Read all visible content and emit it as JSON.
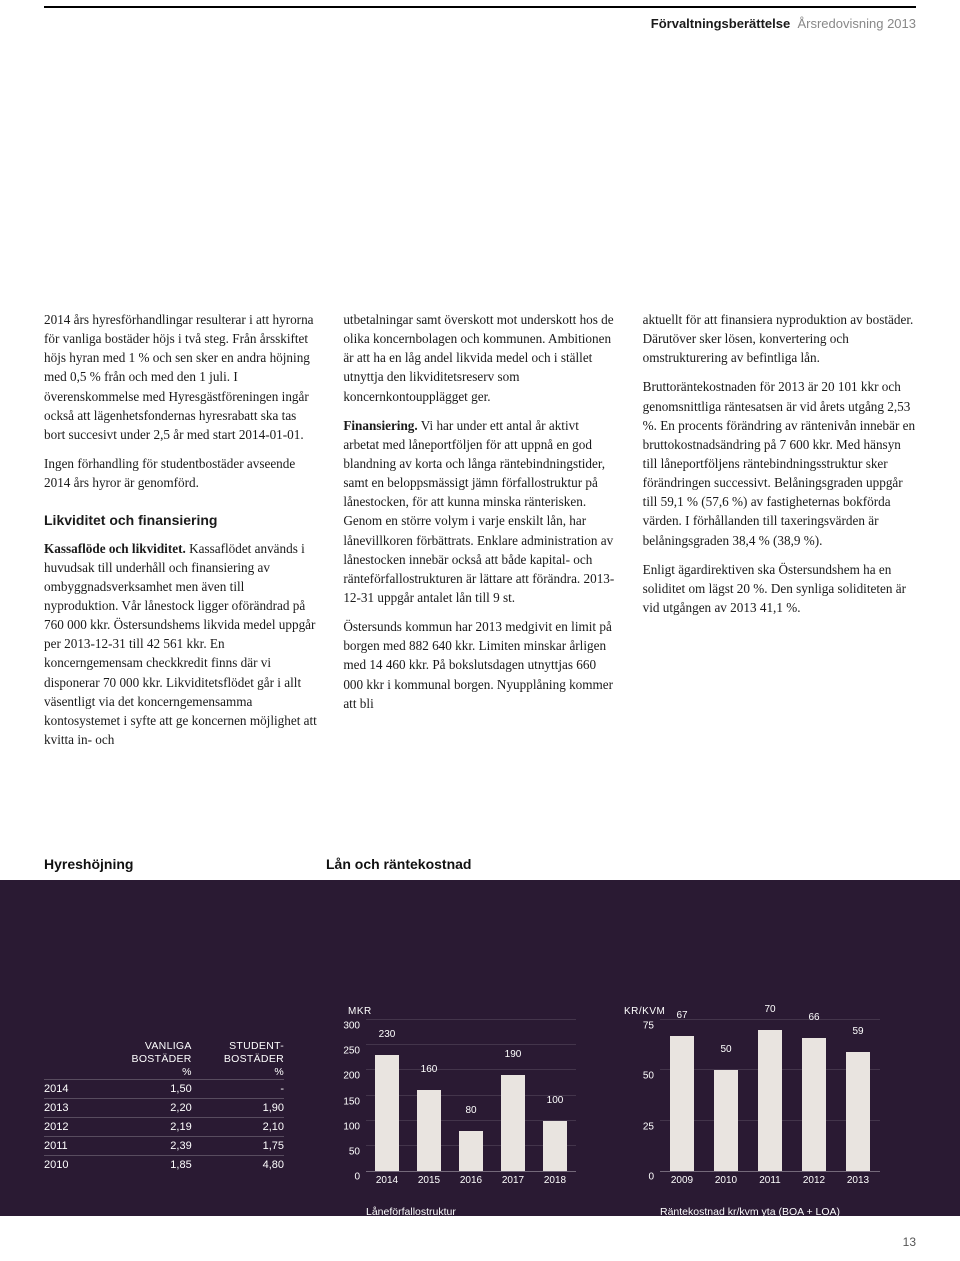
{
  "header": {
    "section_bold": "Förvaltningsberättelse",
    "section_light": "Årsredovisning 2013"
  },
  "page_number": "13",
  "col1": {
    "p1": "2014 års hyresförhandlingar resulterar i att hyrorna för vanliga bostäder höjs i två steg. Från årsskiftet höjs hyran med 1 % och sen sker en andra höjning med 0,5 % från och med den 1 juli. I överenskommelse med Hyresgästföreningen ingår också att lägenhetsfondernas hyresrabatt ska tas bort succesivt under 2,5 år med start 2014-01-01.",
    "p2": "Ingen förhandling för studentbostäder avseende 2014 års hyror är genomförd.",
    "h2": "Likviditet och finansiering",
    "p3_lead": "Kassaflöde och likviditet.",
    "p3": " Kassaflödet används i huvudsak till underhåll och finansiering av ombyggnadsverksamhet men även till nyproduktion. Vår lånestock ligger oförändrad på 760 000 kkr. Östersundshems likvida medel uppgår per 2013-12-31 till 42 561 kkr. En koncerngemensam checkkredit finns där vi disponerar 70 000 kkr. Likviditetsflödet går i allt väsentligt via det koncerngemensamma kontosystemet i syfte att ge koncernen möjlighet att kvitta in- och"
  },
  "col2": {
    "p1": "utbetalningar samt överskott mot underskott hos de olika koncernbolagen och kommunen. Ambitionen är att ha en låg andel likvida medel och i stället utnyttja den likviditetsreserv som koncernkontoupplägget ger.",
    "p2_lead": "Finansiering.",
    "p2": " Vi har under ett antal år aktivt arbetat med låneportföljen för att uppnå en god blandning av korta och långa räntebindningstider, samt en beloppsmässigt jämn förfallostruktur på lånestocken, för att kunna minska ränterisken. Genom en större volym i varje enskilt lån, har lånevillkoren förbättrats. Enklare administration av lånestocken innebär också att både kapital- och ränteförfallostrukturen är lättare att förändra. 2013-12-31 uppgår antalet lån till 9 st.",
    "p3": "Östersunds kommun har 2013 medgivit en limit på borgen med 882 640 kkr. Limiten minskar årligen med 14 460 kkr. På bokslutsdagen utnyttjas 660 000 kkr i kommunal borgen. Nyupplåning kommer att bli"
  },
  "col3": {
    "p1": "aktuellt för att finansiera nyproduktion av bostäder. Därutöver sker lösen, konvertering och omstrukturering av befintliga lån.",
    "p2": "Bruttoräntekostnaden för 2013 är 20 101 kkr och genomsnittliga räntesatsen är vid årets utgång 2,53 %. En procents förändring av räntenivån innebär en bruttokostnadsändring på 7 600 kkr. Med hänsyn till låneportföljens räntebindningsstruktur sker förändringen successivt. Belåningsgraden uppgår till 59,1 % (57,6 %) av fastigheternas bokförda värden. I förhållanden till taxeringsvärden är belåningsgraden 38,4 % (38,9 %).",
    "p3": "Enligt ägardirektiven ska Östersundshem ha en soliditet om lägst 20 %. Den synliga soliditeten är vid utgången av 2013 41,1 %."
  },
  "table": {
    "title": "Hyreshöjning",
    "col1_hdr": "VANLIGA BOSTÄDER %",
    "col2_hdr": "STUDENT- BOSTÄDER %",
    "rows": [
      {
        "year": "2014",
        "v": "1,50",
        "s": "-"
      },
      {
        "year": "2013",
        "v": "2,20",
        "s": "1,90"
      },
      {
        "year": "2012",
        "v": "2,19",
        "s": "2,10"
      },
      {
        "year": "2011",
        "v": "2,39",
        "s": "1,75"
      },
      {
        "year": "2010",
        "v": "1,85",
        "s": "4,80"
      }
    ]
  },
  "chart_loan": {
    "title": "Lån och räntekostnad",
    "type": "bar",
    "axis_label": "MKR",
    "categories": [
      "2014",
      "2015",
      "2016",
      "2017",
      "2018"
    ],
    "values": [
      230,
      160,
      80,
      190,
      100
    ],
    "ylim": [
      0,
      300
    ],
    "ytick_step": 50,
    "bar_color": "#e9e4e0",
    "background_color": "#2a1a33",
    "bar_width": 0.55,
    "caption": "Låneförfallostruktur"
  },
  "chart_rate": {
    "type": "bar",
    "axis_label": "KR/KVM",
    "categories": [
      "2009",
      "2010",
      "2011",
      "2012",
      "2013"
    ],
    "values": [
      67,
      50,
      70,
      66,
      59
    ],
    "ylim": [
      0,
      75
    ],
    "ytick_step": 25,
    "bar_color": "#e9e4e0",
    "background_color": "#2a1a33",
    "bar_width": 0.55,
    "caption": "Räntekostnad kr/kvm yta (BOA + LOA)"
  }
}
